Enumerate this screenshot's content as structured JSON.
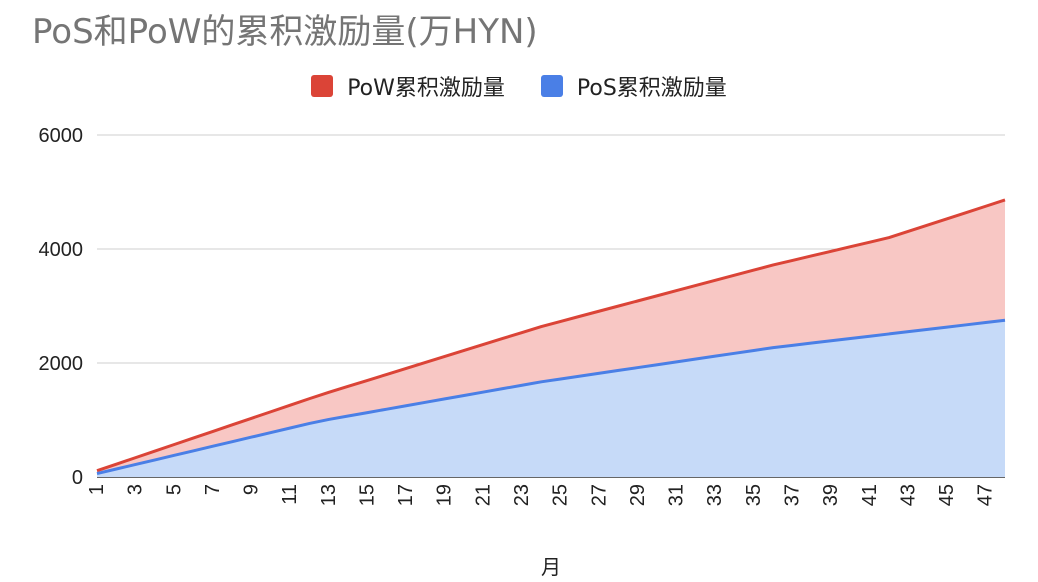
{
  "chart_data": {
    "type": "area",
    "title": "PoS和PoW的累积激励量(万HYN)",
    "xlabel": "月",
    "ylabel": "",
    "x": [
      1,
      2,
      3,
      4,
      5,
      6,
      7,
      8,
      9,
      10,
      11,
      12,
      13,
      14,
      15,
      16,
      17,
      18,
      19,
      20,
      21,
      22,
      23,
      24,
      25,
      26,
      27,
      28,
      29,
      30,
      31,
      32,
      33,
      34,
      35,
      36,
      37,
      38,
      39,
      40,
      41,
      42,
      43,
      44,
      45,
      46,
      47,
      48
    ],
    "x_tick_labels": [
      "1",
      "3",
      "5",
      "7",
      "9",
      "11",
      "13",
      "15",
      "17",
      "19",
      "21",
      "23",
      "25",
      "27",
      "29",
      "31",
      "33",
      "35",
      "37",
      "39",
      "41",
      "43",
      "45",
      "47"
    ],
    "ylim": [
      0,
      6000
    ],
    "y_ticks": [
      0,
      2000,
      4000,
      6000
    ],
    "grid": true,
    "legend_position": "top",
    "series": [
      {
        "name": "PoW累积激励量",
        "color": "#db4437",
        "fill": "#f8c7c4",
        "values": [
          110,
          225,
          340,
          455,
          570,
          685,
          800,
          915,
          1030,
          1145,
          1260,
          1375,
          1485,
          1590,
          1695,
          1800,
          1905,
          2010,
          2115,
          2220,
          2325,
          2430,
          2535,
          2640,
          2730,
          2820,
          2910,
          3000,
          3090,
          3180,
          3270,
          3360,
          3450,
          3540,
          3630,
          3720,
          3800,
          3880,
          3960,
          4040,
          4120,
          4200,
          4310,
          4420,
          4530,
          4640,
          4750,
          4860
        ]
      },
      {
        "name": "PoS累积激励量",
        "color": "#4a7fe6",
        "fill": "#c6daf8",
        "values": [
          60,
          140,
          220,
          300,
          380,
          460,
          540,
          620,
          700,
          780,
          860,
          940,
          1010,
          1070,
          1130,
          1190,
          1250,
          1310,
          1370,
          1430,
          1490,
          1550,
          1610,
          1670,
          1720,
          1770,
          1820,
          1870,
          1920,
          1970,
          2020,
          2070,
          2120,
          2170,
          2220,
          2270,
          2310,
          2350,
          2390,
          2430,
          2470,
          2510,
          2550,
          2590,
          2630,
          2670,
          2710,
          2750
        ]
      }
    ]
  }
}
